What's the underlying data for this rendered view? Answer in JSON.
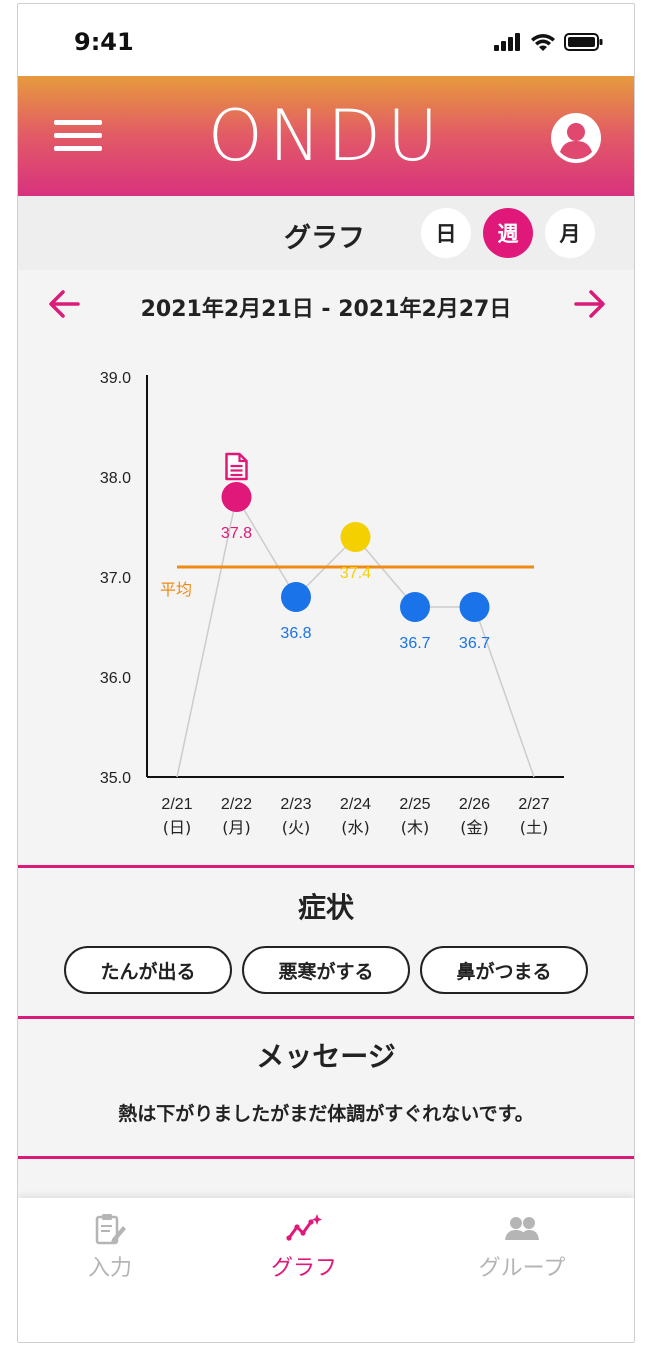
{
  "status": {
    "time": "9:41"
  },
  "header": {
    "logo": "ONDU"
  },
  "toolbar": {
    "title": "グラフ",
    "periods": [
      {
        "label": "日",
        "active": false
      },
      {
        "label": "週",
        "active": true
      },
      {
        "label": "月",
        "active": false
      }
    ]
  },
  "range": {
    "label": "2021年2月21日 - 2021年2月27日"
  },
  "chart_data": {
    "type": "line",
    "y_ticks": [
      "39.0",
      "38.0",
      "37.0",
      "36.0",
      "35.0"
    ],
    "ylim": [
      35.0,
      39.0
    ],
    "categories": [
      "2/21\n(日)",
      "2/22\n(月)",
      "2/23\n(火)",
      "2/24\n(水)",
      "2/25\n(木)",
      "2/26\n(金)",
      "2/27\n(土)"
    ],
    "x_dates": [
      "2/21",
      "2/22",
      "2/23",
      "2/24",
      "2/25",
      "2/26",
      "2/27"
    ],
    "x_days": [
      "(日)",
      "(月)",
      "(火)",
      "(水)",
      "(木)",
      "(金)",
      "(土)"
    ],
    "values": [
      35.0,
      37.8,
      36.8,
      37.4,
      36.7,
      36.7,
      35.0
    ],
    "points": [
      {
        "x": "2/22",
        "value": 37.8,
        "label": "37.8",
        "color": "#e0187a",
        "has_note": true
      },
      {
        "x": "2/23",
        "value": 36.8,
        "label": "36.8",
        "color": "#1a73e8",
        "has_note": false
      },
      {
        "x": "2/24",
        "value": 37.4,
        "label": "37.4",
        "color": "#f5d000",
        "has_note": false
      },
      {
        "x": "2/25",
        "value": 36.7,
        "label": "36.7",
        "color": "#1a73e8",
        "has_note": false
      },
      {
        "x": "2/26",
        "value": 36.7,
        "label": "36.7",
        "color": "#1a73e8",
        "has_note": false
      }
    ],
    "average": {
      "label": "平均",
      "value": 37.1,
      "color": "#ef8a14"
    },
    "line_color": "#cccccc"
  },
  "symptoms": {
    "title": "症状",
    "tags": [
      "たんが出る",
      "悪寒がする",
      "鼻がつまる"
    ]
  },
  "message": {
    "title": "メッセージ",
    "text": "熱は下がりましたがまだ体調がすぐれないです。"
  },
  "tabbar": {
    "items": [
      {
        "label": "入力",
        "icon": "clipboard-pen-icon",
        "active": false
      },
      {
        "label": "グラフ",
        "icon": "graph-sparkle-icon",
        "active": true
      },
      {
        "label": "グループ",
        "icon": "group-icon",
        "active": false
      }
    ]
  }
}
